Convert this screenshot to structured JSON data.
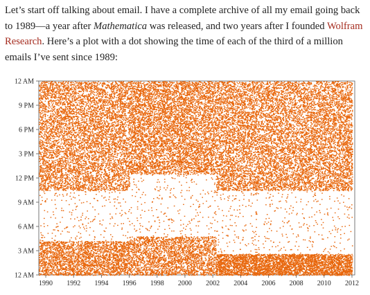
{
  "article": {
    "intro_before_italic": "Let’s start off talking about email. I have a complete archive of all my email going back to 1989—a year after ",
    "italic_word": "Mathematica",
    "intro_middle": " was released, and two years after I founded ",
    "link_text": "Wolfram Research",
    "intro_after_link": ". Here’s a plot with a dot showing the time of each of the third of a million emails I’ve sent since 1989:"
  },
  "colors": {
    "dots": "#e8670c",
    "frame": "#555555",
    "link": "#a42a1d",
    "text": "#222222"
  },
  "chart_data": {
    "type": "scatter",
    "title": "",
    "xlabel": "",
    "ylabel": "",
    "xlim": [
      1989.5,
      2012.2
    ],
    "ylim": [
      0,
      24
    ],
    "x_ticks": [
      1990,
      1992,
      1994,
      1996,
      1998,
      2000,
      2002,
      2004,
      2006,
      2008,
      2010,
      2012
    ],
    "x_tick_labels": [
      "1990",
      "1992",
      "1994",
      "1996",
      "1998",
      "2000",
      "2002",
      "2004",
      "2006",
      "2008",
      "2010",
      "2012"
    ],
    "y_ticks": [
      0,
      3,
      6,
      9,
      12,
      15,
      18,
      21,
      24
    ],
    "y_tick_labels": [
      "12 AM",
      "3 AM",
      "6 AM",
      "9 AM",
      "12 PM",
      "3 PM",
      "6 PM",
      "9 PM",
      "12 AM"
    ],
    "grid": false,
    "density_eras": [
      {
        "from_year": 1989.5,
        "to_year": 1996.0,
        "active_hours": [
          10.5,
          24
        ],
        "night_hours": [
          0,
          4.2
        ]
      },
      {
        "from_year": 1996.0,
        "to_year": 2002.2,
        "active_hours": [
          12.5,
          24
        ],
        "night_hours": [
          0,
          4.8
        ]
      },
      {
        "from_year": 2002.2,
        "to_year": 2012.0,
        "active_hours": [
          10.5,
          24
        ],
        "night_hours": [
          0,
          2.6
        ]
      }
    ]
  }
}
